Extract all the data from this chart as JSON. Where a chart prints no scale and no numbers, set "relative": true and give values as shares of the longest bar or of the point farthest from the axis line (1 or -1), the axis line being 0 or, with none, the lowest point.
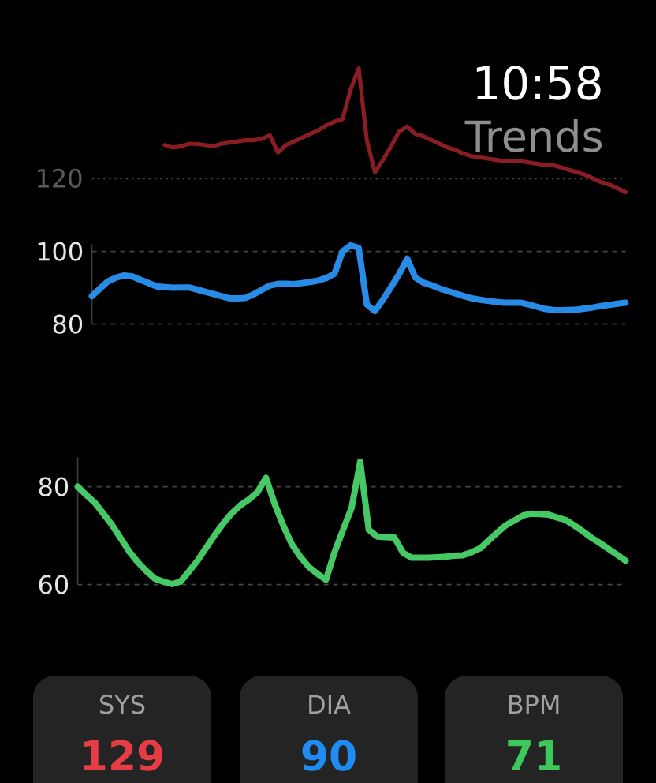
{
  "chart_data": [
    {
      "type": "line",
      "title": "Trends",
      "annotations": [
        "10:58",
        "120"
      ],
      "relative": true,
      "color": "#8a1c24",
      "categories": [
        null,
        null,
        null,
        null,
        null,
        null,
        null,
        null,
        null,
        null,
        null,
        null,
        null,
        null,
        null,
        null,
        null,
        null,
        null,
        null,
        null,
        null,
        null,
        null,
        null,
        null,
        null,
        null,
        null,
        null,
        null,
        null,
        null,
        null,
        null,
        null,
        null,
        null,
        null,
        null,
        null,
        null,
        null,
        null,
        null,
        null,
        null,
        null,
        null,
        null,
        null,
        null,
        null,
        null,
        null,
        null,
        null,
        null,
        null,
        null,
        null,
        null,
        null,
        null,
        null,
        null,
        null
      ],
      "values": [
        null,
        null,
        null,
        null,
        null,
        null,
        null,
        null,
        null,
        0.38,
        0.36,
        0.37,
        0.39,
        0.39,
        0.38,
        0.37,
        0.39,
        0.4,
        0.41,
        0.42,
        0.42,
        0.43,
        0.46,
        0.32,
        0.38,
        0.41,
        0.44,
        0.47,
        0.5,
        0.54,
        0.57,
        0.59,
        0.83,
        1.0,
        0.42,
        0.16,
        0.26,
        0.37,
        0.49,
        0.53,
        0.47,
        0.45,
        0.42,
        0.39,
        0.36,
        0.34,
        0.31,
        0.29,
        0.28,
        0.27,
        0.26,
        0.25,
        0.25,
        0.25,
        0.24,
        0.23,
        0.22,
        0.22,
        0.2,
        0.18,
        0.16,
        0.14,
        0.11,
        0.08,
        0.06,
        0.03,
        0.0
      ],
      "ref_lines": [
        {
          "axis": "y",
          "value": 0.11,
          "color": "#4a4a4a",
          "line_style": "dotted"
        }
      ]
    },
    {
      "type": "line",
      "color": "#288ce6",
      "grid": "y",
      "ylim": [
        80,
        102
      ],
      "yticks": [
        80,
        100
      ],
      "categories": [
        null,
        null,
        null,
        null,
        null,
        null,
        null,
        null,
        null,
        null,
        null,
        null,
        null,
        null,
        null,
        null,
        null,
        null,
        null,
        null,
        null,
        null,
        null,
        null,
        null,
        null,
        null,
        null,
        null,
        null,
        null,
        null,
        null,
        null,
        null,
        null,
        null,
        null,
        null,
        null,
        null,
        null,
        null,
        null,
        null,
        null,
        null,
        null,
        null,
        null,
        null,
        null,
        null,
        null,
        null,
        null,
        null,
        null,
        null,
        null,
        null,
        null,
        null,
        null,
        null,
        null,
        null
      ],
      "values": [
        87.7,
        89.8,
        91.8,
        92.8,
        93.4,
        93.1,
        92.2,
        91.3,
        90.4,
        90.2,
        90.0,
        90.1,
        90.1,
        89.5,
        88.9,
        88.3,
        87.7,
        87.1,
        87.1,
        87.2,
        88.2,
        89.4,
        90.6,
        91.1,
        91.1,
        91.0,
        91.3,
        91.6,
        92.0,
        92.7,
        93.9,
        100.0,
        101.7,
        101.0,
        85.4,
        83.6,
        86.7,
        90.2,
        93.8,
        98.0,
        92.8,
        91.4,
        90.7,
        89.8,
        89.1,
        88.4,
        87.7,
        87.1,
        86.7,
        86.4,
        86.1,
        85.9,
        85.9,
        85.9,
        85.4,
        84.8,
        84.2,
        83.9,
        83.8,
        83.9,
        84.0,
        84.3,
        84.6,
        85.0,
        85.3,
        85.6,
        85.9
      ]
    },
    {
      "type": "line",
      "color": "#46c864",
      "grid": "y",
      "ylim": [
        60,
        86
      ],
      "yticks": [
        60,
        80
      ],
      "categories": [
        null,
        null,
        null,
        null,
        null,
        null,
        null,
        null,
        null,
        null,
        null,
        null,
        null,
        null,
        null,
        null,
        null,
        null,
        null,
        null,
        null,
        null,
        null,
        null,
        null,
        null,
        null,
        null,
        null,
        null,
        null,
        null,
        null,
        null,
        null,
        null,
        null,
        null,
        null,
        null,
        null,
        null,
        null,
        null,
        null,
        null,
        null,
        null,
        null,
        null,
        null,
        null,
        null,
        null,
        null,
        null,
        null,
        null,
        null,
        null,
        null,
        null,
        null,
        null,
        null
      ],
      "values": [
        80.0,
        78.3,
        76.7,
        74.5,
        72.2,
        69.5,
        66.8,
        64.6,
        62.8,
        61.2,
        60.6,
        60.1,
        60.6,
        62.7,
        64.9,
        67.5,
        70.1,
        72.5,
        74.6,
        76.2,
        77.4,
        78.9,
        81.8,
        76.5,
        72.1,
        68.3,
        65.7,
        63.6,
        62.2,
        61.0,
        66.6,
        71.2,
        75.7,
        85.1,
        71.2,
        69.8,
        69.7,
        69.6,
        66.5,
        65.5,
        65.5,
        65.5,
        65.6,
        65.7,
        65.9,
        66.0,
        66.6,
        67.4,
        69.0,
        70.6,
        72.1,
        73.1,
        74.1,
        74.5,
        74.4,
        74.3,
        73.7,
        73.2,
        72.1,
        70.9,
        69.6,
        68.5,
        67.3,
        66.1,
        64.9
      ]
    },
    {
      "type": "other",
      "categories": [
        "SYS",
        "DIA",
        "BPM"
      ],
      "values": [
        129,
        90,
        71
      ],
      "colors": [
        "#242424",
        "#242424",
        "#242424"
      ],
      "data_labels": true
    }
  ]
}
